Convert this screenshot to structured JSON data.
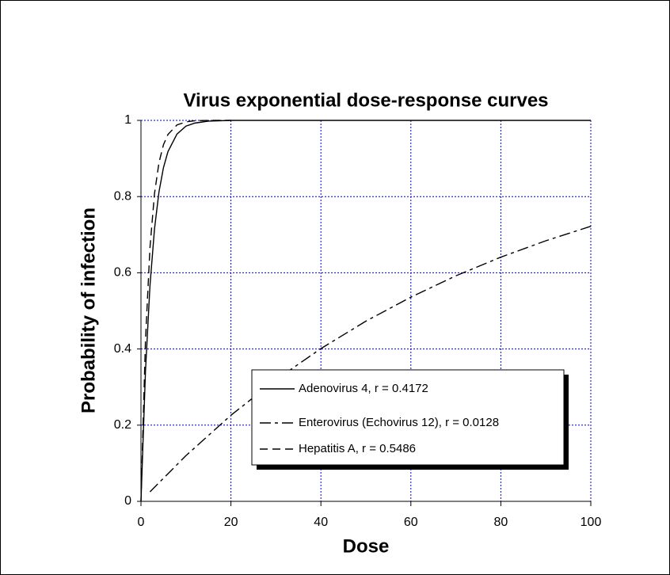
{
  "chart_data": {
    "type": "line",
    "title": "Virus exponential dose-response curves",
    "x_label": "Dose",
    "y_label": "Probability of infection",
    "xlim": [
      0,
      100
    ],
    "xticks": [
      0,
      20,
      40,
      60,
      80,
      100
    ],
    "ylim": [
      0,
      1
    ],
    "yticks": [
      0,
      0.2,
      0.4,
      0.6,
      0.8,
      1
    ],
    "grid": true,
    "grid_color": "#0000cc",
    "series": [
      {
        "name": "Adenovirus 4, r = 0.4172",
        "color": "#000000",
        "dash": "solid",
        "x": [
          0,
          1,
          2,
          3,
          4,
          5,
          6,
          8,
          10,
          12,
          15,
          20,
          30,
          40,
          50,
          60,
          70,
          80,
          90,
          100
        ],
        "values": [
          0,
          0.341,
          0.566,
          0.714,
          0.812,
          0.876,
          0.918,
          0.964,
          0.985,
          0.993,
          0.998,
          1,
          1,
          1,
          1,
          1,
          1,
          1,
          1,
          1
        ]
      },
      {
        "name": "Enterovirus (Echovirus 12), r = 0.0128",
        "color": "#000000",
        "dash": "dashdot",
        "x": [
          2,
          10,
          20,
          30,
          40,
          50,
          60,
          70,
          80,
          90,
          100
        ],
        "values": [
          0.025,
          0.12,
          0.226,
          0.319,
          0.401,
          0.473,
          0.536,
          0.592,
          0.641,
          0.684,
          0.722
        ]
      },
      {
        "name": "Hepatitis A, r = 0.5486",
        "color": "#000000",
        "dash": "dashed",
        "x": [
          0,
          1,
          2,
          3,
          4,
          5,
          6,
          8,
          10,
          12,
          15,
          20
        ],
        "values": [
          0,
          0.422,
          0.666,
          0.807,
          0.889,
          0.936,
          0.963,
          0.988,
          0.996,
          0.999,
          1,
          1
        ]
      }
    ]
  }
}
